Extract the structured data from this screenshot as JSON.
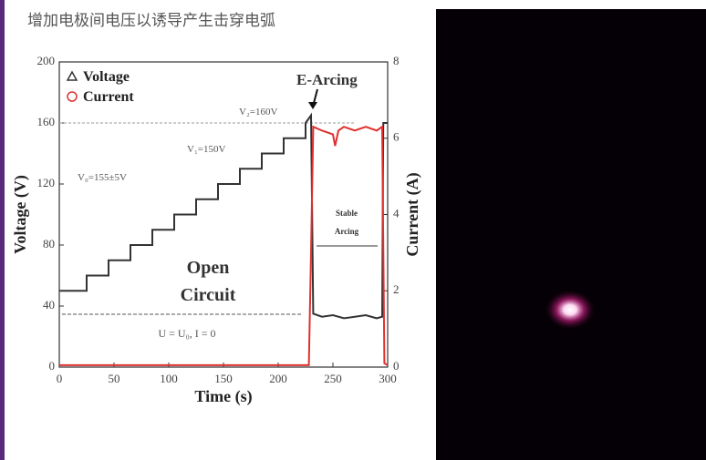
{
  "header": {
    "title": "增加电极间电压以诱导产生击穿电弧"
  },
  "chart_data": {
    "type": "line",
    "xlabel": "Time (s)",
    "ylabel": "Voltage (V)",
    "y2label": "Current (A)",
    "xlim": [
      0,
      300
    ],
    "xticks": [
      0,
      50,
      100,
      150,
      200,
      250,
      300
    ],
    "ylim": [
      0,
      200
    ],
    "yticks": [
      0,
      40,
      80,
      120,
      160,
      200
    ],
    "y2lim": [
      0,
      8
    ],
    "y2ticks": [
      0,
      2,
      4,
      6,
      8
    ],
    "hline": 160,
    "legend": "upper left",
    "series": [
      {
        "name": "Voltage",
        "color": "#333333",
        "marker": "triangle",
        "x": [
          0,
          25,
          25,
          45,
          45,
          65,
          65,
          85,
          85,
          105,
          105,
          125,
          125,
          145,
          145,
          165,
          165,
          185,
          185,
          205,
          205,
          225,
          225,
          230,
          232,
          240,
          250,
          260,
          270,
          280,
          290,
          295,
          296,
          300
        ],
        "values": [
          50,
          50,
          60,
          60,
          70,
          70,
          80,
          80,
          90,
          90,
          100,
          100,
          110,
          110,
          120,
          120,
          130,
          130,
          140,
          140,
          150,
          150,
          160,
          165,
          35,
          33,
          34,
          32,
          33,
          34,
          32,
          33,
          160,
          160
        ]
      },
      {
        "name": "Current",
        "color": "#e03030",
        "marker": "circle",
        "axis": "y2",
        "x": [
          0,
          228,
          230,
          232,
          240,
          250,
          252,
          255,
          260,
          270,
          280,
          290,
          295,
          297,
          300
        ],
        "values": [
          0.05,
          0.05,
          3,
          6.3,
          6.2,
          6.1,
          5.8,
          6.2,
          6.3,
          6.2,
          6.3,
          6.2,
          6.3,
          0.1,
          0.05
        ]
      }
    ],
    "annotations": {
      "arcing": "E-Arcing",
      "v2": "V₂=160V",
      "v1": "V₁=150V",
      "v0": "V₀=155±5V",
      "stable": [
        "Stable",
        "Arcing"
      ],
      "open": [
        "Open",
        "Circuit"
      ],
      "condition": "U = U₀, I = 0"
    }
  }
}
